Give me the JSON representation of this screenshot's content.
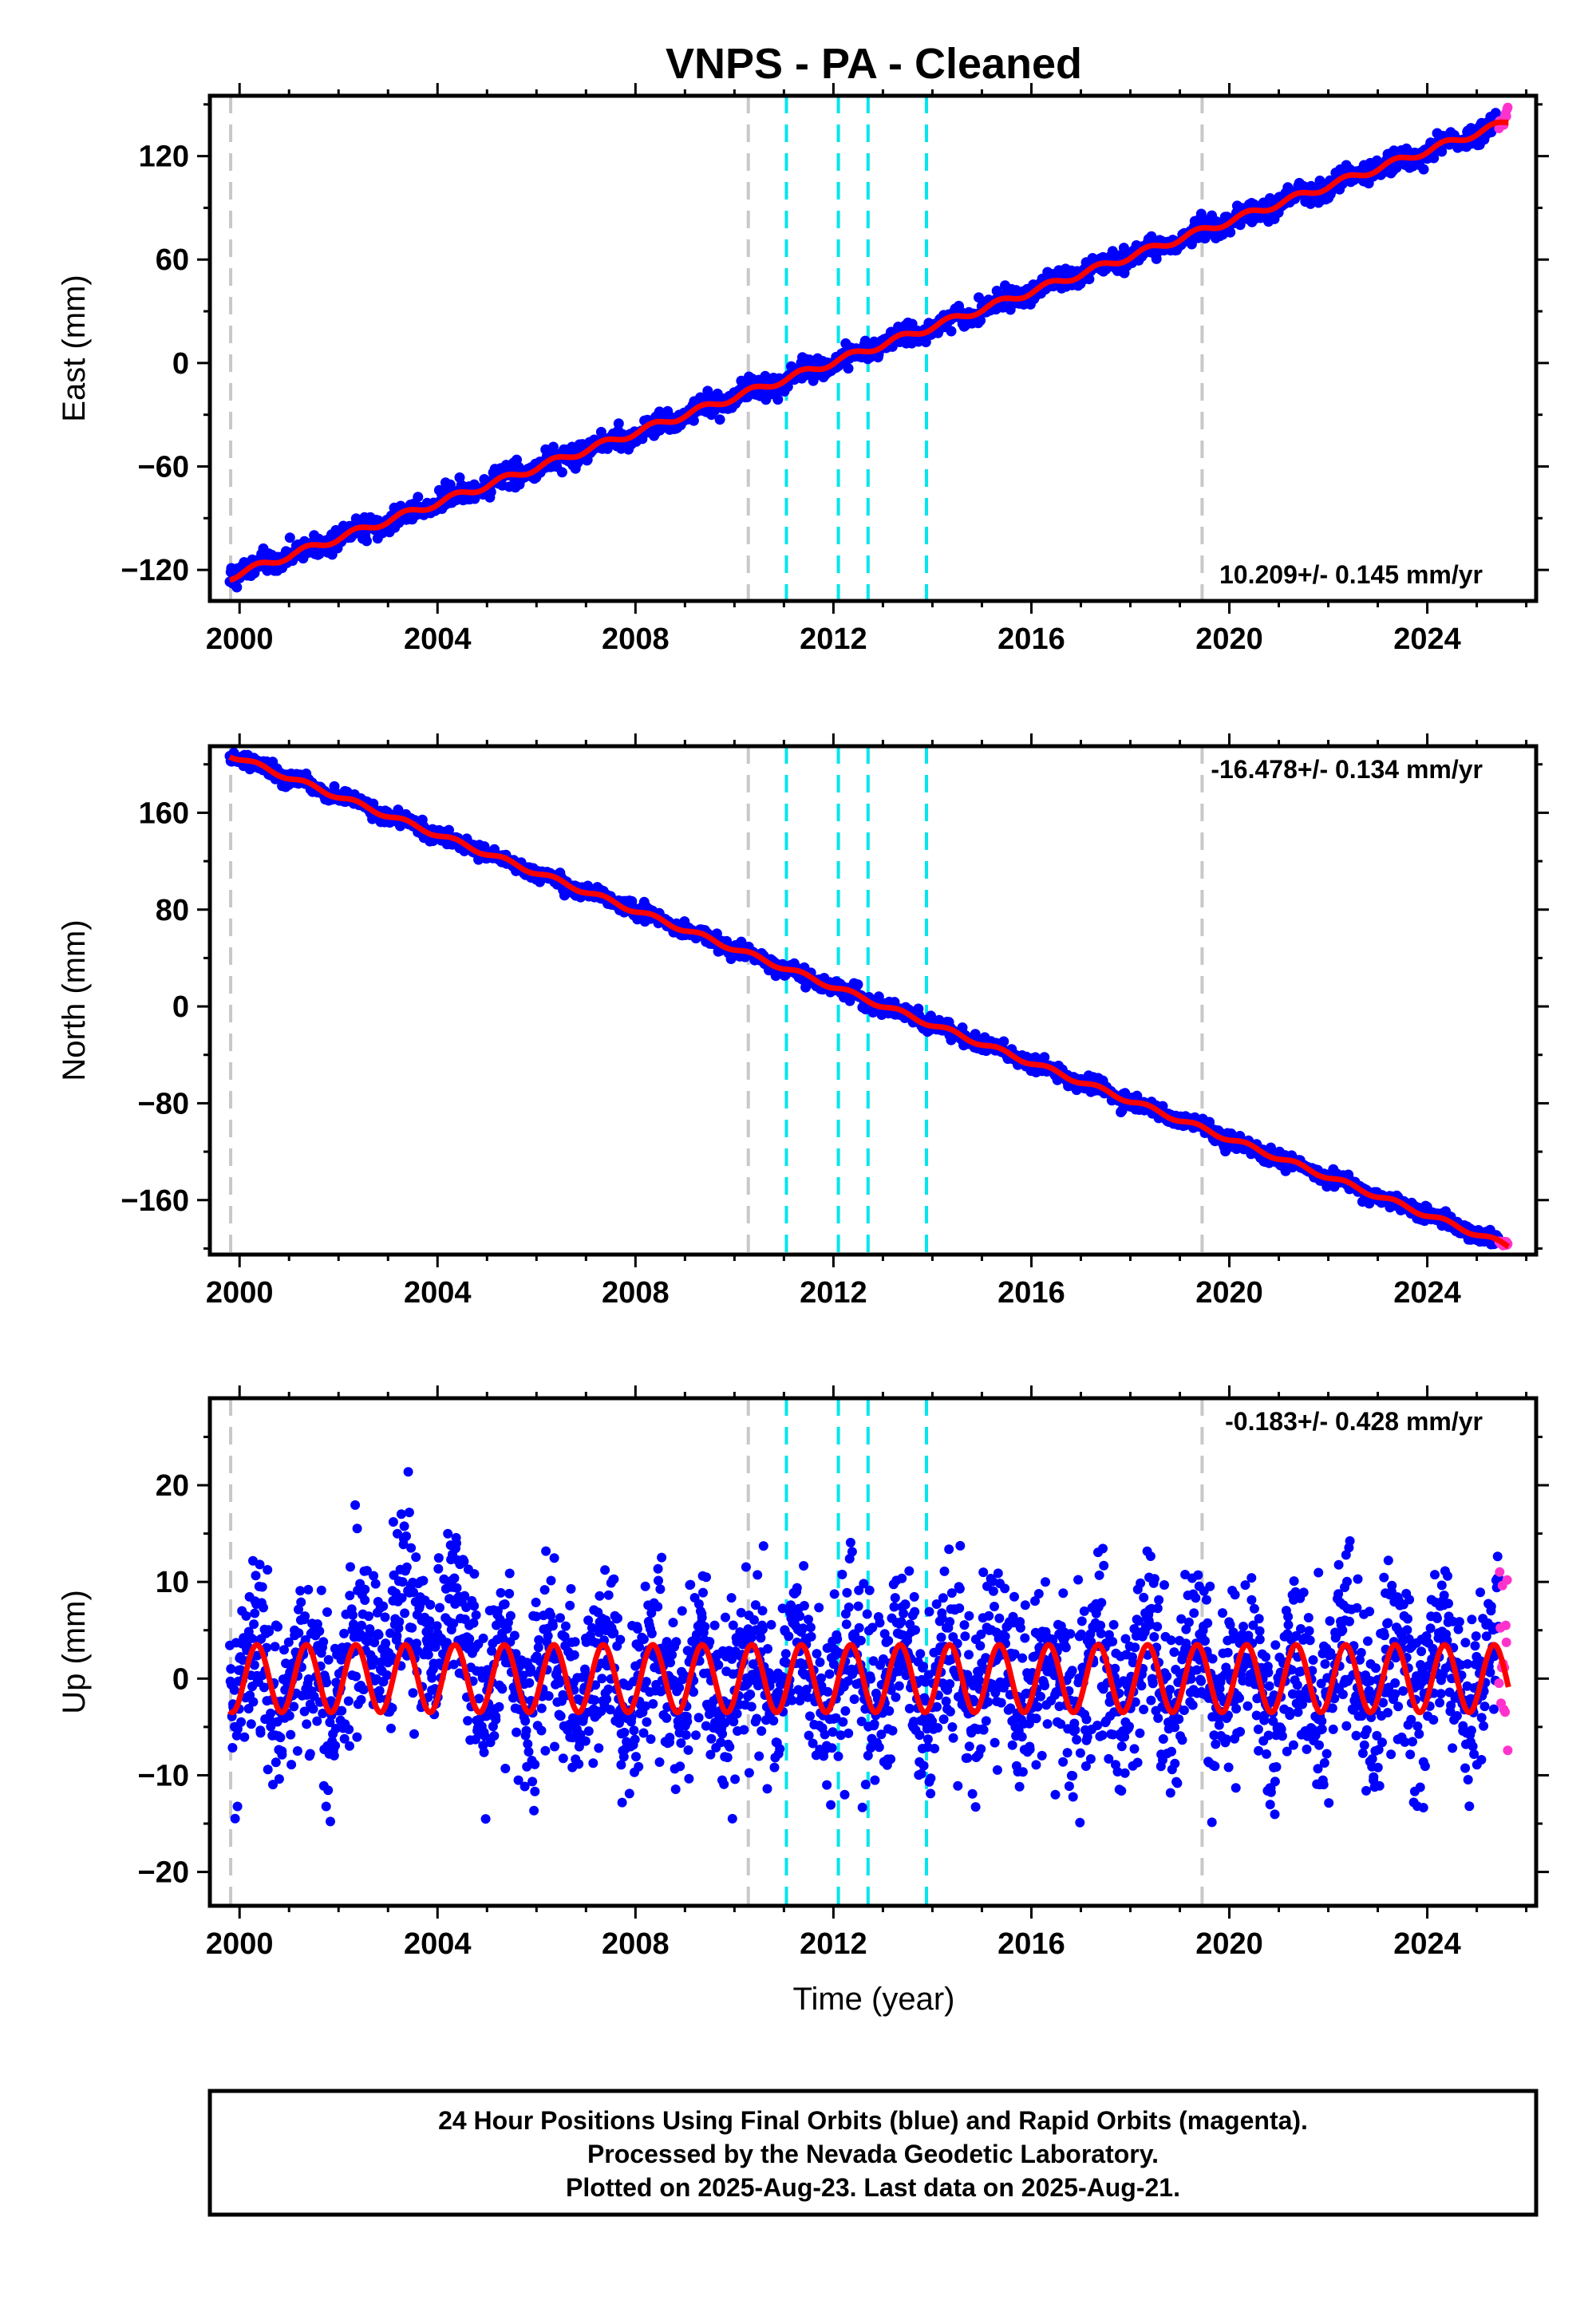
{
  "title": "VNPS  - PA - Cleaned",
  "xlabel": "Time (year)",
  "colors": {
    "final": "#0000ff",
    "rapid": "#ff33cc",
    "model": "#ff0000",
    "equipment_change": "#c8c8c8",
    "earthquake": "#00e5ee"
  },
  "chart_data": [
    {
      "type": "scatter",
      "component": "East",
      "ylabel": "East (mm)",
      "xlim": [
        1999.4,
        2026.2
      ],
      "ylim": [
        -138,
        155
      ],
      "yticks": [
        -120,
        -60,
        0,
        60,
        120
      ],
      "xticks": [
        2000,
        2004,
        2008,
        2012,
        2016,
        2020,
        2024
      ],
      "rate_text": "10.209+/- 0.145 mm/yr",
      "rate_mm_per_yr": 10.209,
      "series": [
        {
          "name": "24 Hour Positions Using Final Orbits (blue)",
          "x_range": [
            1999.8,
            2025.45
          ],
          "y_at_start": -124,
          "y_at_end": 138,
          "scatter_mm": 3
        },
        {
          "name": "Rapid Orbits (magenta)",
          "x_range": [
            2025.45,
            2025.64
          ],
          "y_at_start": 139,
          "y_at_end": 145
        }
      ],
      "seasonal_amplitude_mm": 2
    },
    {
      "type": "scatter",
      "component": "North",
      "ylabel": "North (mm)",
      "xlim": [
        1999.4,
        2026.2
      ],
      "ylim": [
        -205,
        215
      ],
      "yticks": [
        -160,
        -80,
        0,
        80,
        160
      ],
      "xticks": [
        2000,
        2004,
        2008,
        2012,
        2016,
        2020,
        2024
      ],
      "rate_text": "-16.478+/- 0.134 mm/yr",
      "rate_mm_per_yr": -16.478,
      "series": [
        {
          "name": "24 Hour Positions Using Final Orbits (blue)",
          "x_range": [
            1999.8,
            2025.45
          ],
          "y_at_start": 208,
          "y_at_end": -195,
          "scatter_mm": 3
        },
        {
          "name": "Rapid Orbits (magenta)",
          "x_range": [
            2025.45,
            2025.64
          ],
          "y_at_start": -194,
          "y_at_end": -197
        }
      ],
      "seasonal_amplitude_mm": 2
    },
    {
      "type": "scatter",
      "component": "Up",
      "ylabel": "Up (mm)",
      "xlim": [
        1999.4,
        2026.2
      ],
      "ylim": [
        -23.5,
        29
      ],
      "yticks": [
        -20,
        -10,
        0,
        10,
        20
      ],
      "xticks": [
        2000,
        2004,
        2008,
        2012,
        2016,
        2020,
        2024
      ],
      "rate_text": "-0.183+/- 0.428 mm/yr",
      "rate_mm_per_yr": -0.183,
      "series": [
        {
          "name": "24 Hour Positions Using Final Orbits (blue)",
          "x_range": [
            1999.8,
            2025.45
          ],
          "y_at_start": 0,
          "y_at_end": 0,
          "scatter_mm": 4.5
        },
        {
          "name": "Rapid Orbits (magenta)",
          "x_range": [
            2025.45,
            2025.64
          ],
          "y_at_start": 2,
          "y_at_end": 2
        }
      ],
      "seasonal_amplitude_mm": 3.5
    }
  ],
  "steps": {
    "equipment_change_years": [
      1999.82,
      2010.28,
      2019.45
    ],
    "earthquake_years": [
      2011.05,
      2012.1,
      2012.7,
      2013.88
    ]
  },
  "footer": {
    "line1": "24 Hour Positions Using Final Orbits (blue) and Rapid Orbits (magenta).",
    "line2": "Processed by the Nevada Geodetic Laboratory.",
    "line3": "Plotted on 2025-Aug-23. Last data on 2025-Aug-21."
  }
}
